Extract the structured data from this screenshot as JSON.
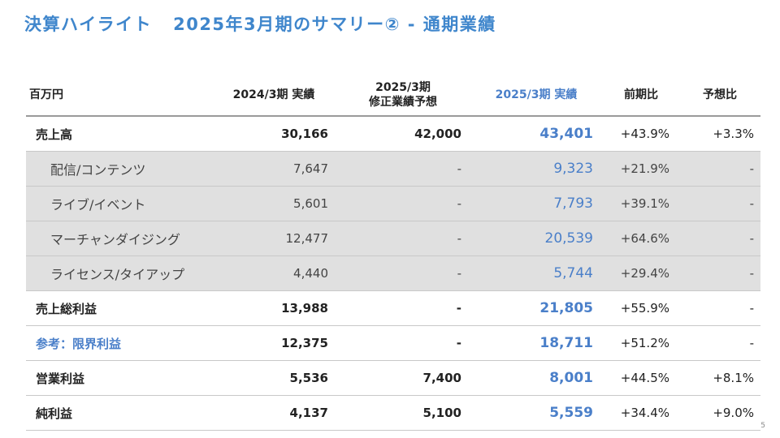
{
  "slide": {
    "title_part1": "決算ハイライト",
    "title_part2": "2025年3月期のサマリー② - 通期業績",
    "page_number": "5"
  },
  "table": {
    "headers": {
      "unit": "百万円",
      "prev_actual": "2024/3期 実績",
      "forecast_line1": "2025/3期",
      "forecast_line2": "修正業績予想",
      "curr_actual": "2025/3期 実績",
      "yoy": "前期比",
      "vs_forecast": "予想比"
    },
    "rows": [
      {
        "label": "売上高",
        "prev": "30,166",
        "forecast": "42,000",
        "actual": "43,401",
        "yoy": "+43.9%",
        "vs_forecast": "+3.3%"
      },
      {
        "label": "配信/コンテンツ",
        "prev": "7,647",
        "forecast": "-",
        "actual": "9,323",
        "yoy": "+21.9%",
        "vs_forecast": "-"
      },
      {
        "label": "ライブ/イベント",
        "prev": "5,601",
        "forecast": "-",
        "actual": "7,793",
        "yoy": "+39.1%",
        "vs_forecast": "-"
      },
      {
        "label": "マーチャンダイジング",
        "prev": "12,477",
        "forecast": "-",
        "actual": "20,539",
        "yoy": "+64.6%",
        "vs_forecast": "-"
      },
      {
        "label": "ライセンス/タイアップ",
        "prev": "4,440",
        "forecast": "-",
        "actual": "5,744",
        "yoy": "+29.4%",
        "vs_forecast": "-"
      },
      {
        "label": "売上総利益",
        "prev": "13,988",
        "forecast": "-",
        "actual": "21,805",
        "yoy": "+55.9%",
        "vs_forecast": "-"
      },
      {
        "label": "参考：限界利益",
        "prev": "12,375",
        "forecast": "-",
        "actual": "18,711",
        "yoy": "+51.2%",
        "vs_forecast": "-"
      },
      {
        "label": "営業利益",
        "prev": "5,536",
        "forecast": "7,400",
        "actual": "8,001",
        "yoy": "+44.5%",
        "vs_forecast": "+8.1%"
      },
      {
        "label": "純利益",
        "prev": "4,137",
        "forecast": "5,100",
        "actual": "5,559",
        "yoy": "+34.4%",
        "vs_forecast": "+9.0%"
      }
    ]
  },
  "colors": {
    "accent_blue": "#4a7fc9",
    "title_blue": "#3f86cc",
    "segment_row_bg": "#e0e0e0"
  }
}
